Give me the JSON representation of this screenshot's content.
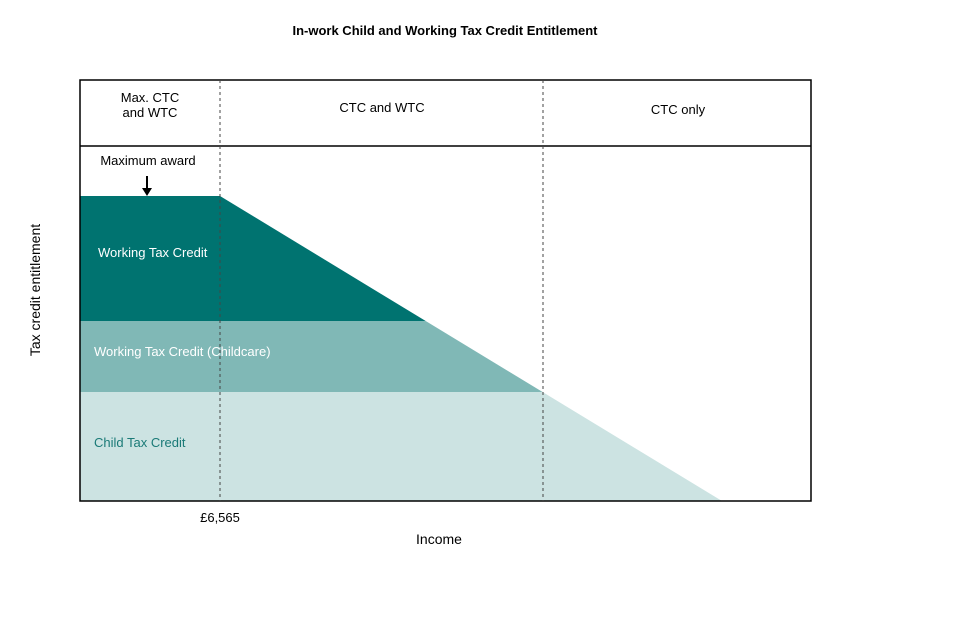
{
  "chart_data": {
    "type": "area",
    "title": "In-work Child and Working Tax Credit Entitlement",
    "xlabel": "Income",
    "ylabel": "Tax credit entitlement",
    "x_tick_labels": [
      "£6,565"
    ],
    "annotation": "Maximum award",
    "header_segments": [
      {
        "label_lines": [
          "Max. CTC",
          "and WTC"
        ]
      },
      {
        "label_lines": [
          "CTC and WTC"
        ]
      },
      {
        "label_lines": [
          "CTC only"
        ]
      }
    ],
    "series": [
      {
        "name": "Working Tax Credit",
        "color": "#007370",
        "label_color": "#ffffff"
      },
      {
        "name": "Working Tax Credit (Childcare)",
        "color": "#80b8b6",
        "label_color": "#ffffff"
      },
      {
        "name": "Child Tax Credit",
        "color": "#cce3e2",
        "label_color": "#1a7a77"
      }
    ],
    "grid": false,
    "dividers": "dashed vertical lines at £6,565 and where CTC only begins"
  }
}
